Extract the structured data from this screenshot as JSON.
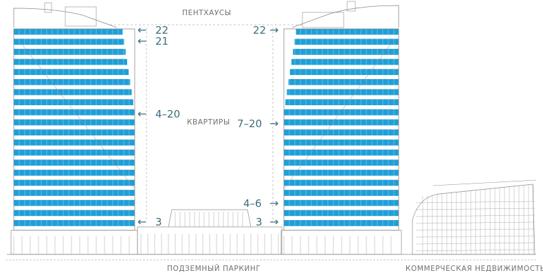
{
  "labels": {
    "penthouses": "ПЕНТХАУСЫ",
    "apartments": "КВАРТИРЫ",
    "parking": "ПОДЗЕМНЫЙ ПАРКИНГ",
    "commercial": "КОММЕРЧЕСКАЯ  НЕДВИЖИМОСТЬ"
  },
  "floor_markers": {
    "left_22": "22",
    "left_21": "21",
    "left_4_20": "4–20",
    "left_3": "3",
    "right_22": "22",
    "right_7_20": "7–20",
    "right_4_6": "4–6",
    "right_3": "3"
  },
  "arrows": {
    "left": "←",
    "right": "→"
  },
  "colors": {
    "glass": "#1f9fd8",
    "outline": "#8a8a8a",
    "marker": "#3b6b7a",
    "label": "#6f6f6f"
  }
}
